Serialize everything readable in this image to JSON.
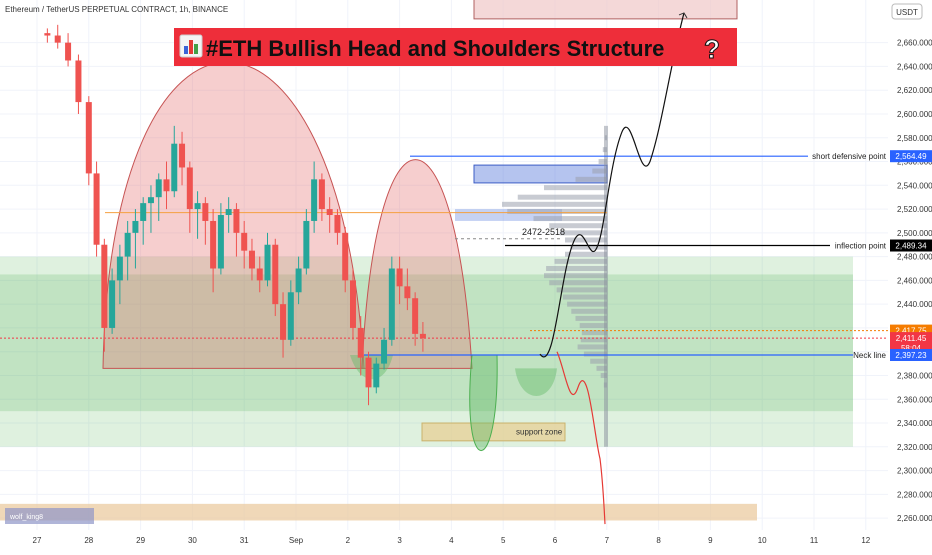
{
  "header": {
    "symbol": "Ethereum / TetherUS PERPETUAL CONTRACT, 1h, BINANCE",
    "currency": "USDT"
  },
  "title": {
    "icon": "bar-chart-icon",
    "text": "#ETH Bullish Head and Shoulders Structure",
    "suffix_icon": "question-mark-icon"
  },
  "watermark": "wolf_king8",
  "annotations": {
    "short_defensive": "short defensive point",
    "inflection": "inflection point",
    "neck_line": "Neck line",
    "support_zone": "support zone",
    "range_label": "2472-2518"
  },
  "chart_data": {
    "type": "candlestick",
    "x_axis": {
      "labels": [
        "27",
        "28",
        "29",
        "30",
        "31",
        "Sep",
        "2",
        "3",
        "4",
        "5",
        "6",
        "7",
        "8",
        "9",
        "10",
        "11",
        "12"
      ]
    },
    "y_axis": {
      "range": [
        2250,
        2690
      ],
      "ticks": [
        2260,
        2280,
        2300,
        2320,
        2340,
        2360,
        2380,
        2400,
        2420,
        2440,
        2460,
        2480,
        2500,
        2520,
        2540,
        2560,
        2580,
        2600,
        2620,
        2640,
        2660
      ]
    },
    "price_labels": [
      {
        "id": "short-defensive",
        "value": 2564.49,
        "text": "2,564.49",
        "color": "#2962ff"
      },
      {
        "id": "inflection",
        "value": 2489.34,
        "text": "2,489.34",
        "color": "#000000"
      },
      {
        "id": "upper-level",
        "value": 2417.75,
        "text": "2,417.75",
        "color": "#f57c00"
      },
      {
        "id": "last-price",
        "value": 2411.45,
        "text": "2,411.45",
        "subtext": "58:04",
        "color": "#f23645"
      },
      {
        "id": "neck-line",
        "value": 2397.23,
        "text": "2,397.23",
        "color": "#2962ff"
      }
    ],
    "levels": {
      "orange_line": 2517,
      "neckline": 2397.23,
      "inflection": 2489.34,
      "short_defensive": 2564.49
    },
    "zones": {
      "green_zone": [
        2350,
        2465
      ],
      "outer_green_zone": [
        2320,
        2480
      ],
      "support_zone": [
        2325,
        2340
      ],
      "demand_zone": [
        2510,
        2520
      ],
      "blue_box": [
        2542,
        2557
      ],
      "top_box": [
        2680,
        2700
      ],
      "bottom_zone": [
        2258,
        2272
      ]
    },
    "candles": [
      [
        0.2,
        2668,
        2672,
        2660,
        2666
      ],
      [
        0.4,
        2666,
        2675,
        2655,
        2660
      ],
      [
        0.6,
        2660,
        2668,
        2640,
        2645
      ],
      [
        0.8,
        2645,
        2650,
        2600,
        2610
      ],
      [
        1.0,
        2610,
        2615,
        2540,
        2550
      ],
      [
        1.15,
        2550,
        2560,
        2480,
        2490
      ],
      [
        1.3,
        2490,
        2495,
        2400,
        2420
      ],
      [
        1.45,
        2420,
        2470,
        2415,
        2460
      ],
      [
        1.6,
        2460,
        2490,
        2440,
        2480
      ],
      [
        1.75,
        2480,
        2510,
        2460,
        2500
      ],
      [
        1.9,
        2500,
        2520,
        2470,
        2510
      ],
      [
        2.05,
        2510,
        2530,
        2490,
        2525
      ],
      [
        2.2,
        2525,
        2540,
        2500,
        2530
      ],
      [
        2.35,
        2530,
        2550,
        2510,
        2545
      ],
      [
        2.5,
        2545,
        2560,
        2520,
        2535
      ],
      [
        2.65,
        2535,
        2590,
        2530,
        2575
      ],
      [
        2.8,
        2575,
        2585,
        2540,
        2555
      ],
      [
        2.95,
        2555,
        2560,
        2500,
        2520
      ],
      [
        3.1,
        2520,
        2535,
        2495,
        2525
      ],
      [
        3.25,
        2525,
        2530,
        2490,
        2510
      ],
      [
        3.4,
        2510,
        2520,
        2450,
        2470
      ],
      [
        3.55,
        2470,
        2525,
        2465,
        2515
      ],
      [
        3.7,
        2515,
        2530,
        2500,
        2520
      ],
      [
        3.85,
        2520,
        2525,
        2480,
        2500
      ],
      [
        4.0,
        2500,
        2510,
        2470,
        2485
      ],
      [
        4.15,
        2485,
        2495,
        2460,
        2470
      ],
      [
        4.3,
        2470,
        2480,
        2450,
        2460
      ],
      [
        4.45,
        2460,
        2500,
        2455,
        2490
      ],
      [
        4.6,
        2490,
        2495,
        2430,
        2440
      ],
      [
        4.75,
        2440,
        2450,
        2395,
        2410
      ],
      [
        4.9,
        2410,
        2460,
        2405,
        2450
      ],
      [
        5.05,
        2450,
        2480,
        2440,
        2470
      ],
      [
        5.2,
        2470,
        2520,
        2465,
        2510
      ],
      [
        5.35,
        2510,
        2560,
        2500,
        2545
      ],
      [
        5.5,
        2545,
        2550,
        2510,
        2520
      ],
      [
        5.65,
        2520,
        2530,
        2500,
        2515
      ],
      [
        5.8,
        2515,
        2520,
        2490,
        2500
      ],
      [
        5.95,
        2500,
        2505,
        2450,
        2460
      ],
      [
        6.1,
        2460,
        2470,
        2410,
        2420
      ],
      [
        6.25,
        2420,
        2430,
        2380,
        2395
      ],
      [
        6.4,
        2395,
        2400,
        2355,
        2370
      ],
      [
        6.55,
        2370,
        2395,
        2365,
        2390
      ],
      [
        6.7,
        2390,
        2420,
        2385,
        2410
      ],
      [
        6.85,
        2410,
        2480,
        2405,
        2470
      ],
      [
        7.0,
        2470,
        2480,
        2440,
        2455
      ],
      [
        7.15,
        2455,
        2470,
        2435,
        2445
      ],
      [
        7.3,
        2445,
        2450,
        2405,
        2415
      ],
      [
        7.45,
        2415,
        2425,
        2400,
        2411.45
      ]
    ]
  }
}
